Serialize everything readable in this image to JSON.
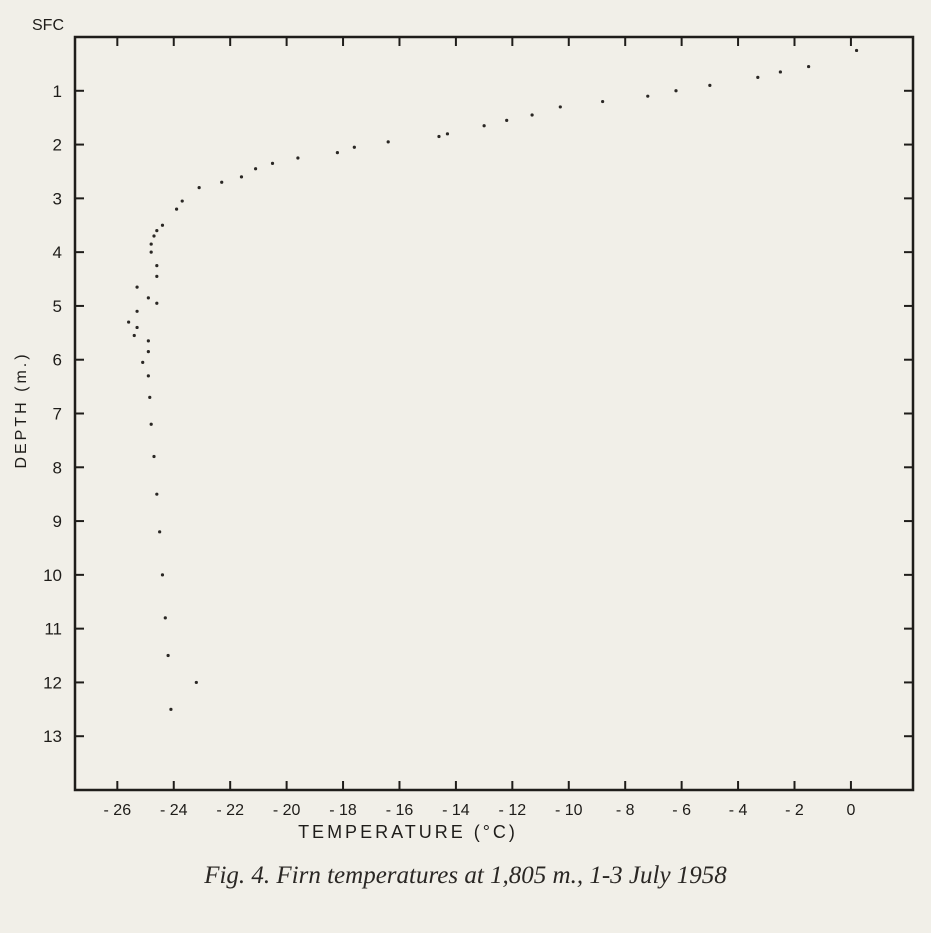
{
  "chart_data": {
    "type": "scatter",
    "title": "",
    "xlabel": "TEMPERATURE (°C)",
    "ylabel": "DEPTH (m.)",
    "x_axis": {
      "min": -27.5,
      "max": 2.2,
      "ticks": [
        -26,
        -24,
        -22,
        -20,
        -18,
        -16,
        -14,
        -12,
        -10,
        -8,
        -6,
        -4,
        -2,
        0
      ]
    },
    "y_axis": {
      "min": 0,
      "max": 14,
      "inverted": true,
      "surface_label": "SFC",
      "ticks": [
        1,
        2,
        3,
        4,
        5,
        6,
        7,
        8,
        9,
        10,
        11,
        12,
        13
      ]
    },
    "grid": false,
    "series": [
      {
        "points": [
          [
            0.2,
            0.25
          ],
          [
            -1.5,
            0.55
          ],
          [
            -2.5,
            0.65
          ],
          [
            -3.3,
            0.75
          ],
          [
            -5.0,
            0.9
          ],
          [
            -6.2,
            1.0
          ],
          [
            -7.2,
            1.1
          ],
          [
            -8.8,
            1.2
          ],
          [
            -10.3,
            1.3
          ],
          [
            -11.3,
            1.45
          ],
          [
            -12.2,
            1.55
          ],
          [
            -13.0,
            1.65
          ],
          [
            -14.3,
            1.8
          ],
          [
            -14.6,
            1.85
          ],
          [
            -16.4,
            1.95
          ],
          [
            -17.6,
            2.05
          ],
          [
            -18.2,
            2.15
          ],
          [
            -19.6,
            2.25
          ],
          [
            -20.5,
            2.35
          ],
          [
            -21.1,
            2.45
          ],
          [
            -21.6,
            2.6
          ],
          [
            -22.3,
            2.7
          ],
          [
            -23.1,
            2.8
          ],
          [
            -23.7,
            3.05
          ],
          [
            -23.9,
            3.2
          ],
          [
            -24.4,
            3.5
          ],
          [
            -24.6,
            3.6
          ],
          [
            -24.7,
            3.7
          ],
          [
            -24.8,
            3.85
          ],
          [
            -24.8,
            4.0
          ],
          [
            -24.6,
            4.25
          ],
          [
            -24.6,
            4.45
          ],
          [
            -25.3,
            4.65
          ],
          [
            -24.9,
            4.85
          ],
          [
            -24.6,
            4.95
          ],
          [
            -25.3,
            5.1
          ],
          [
            -25.6,
            5.3
          ],
          [
            -25.3,
            5.4
          ],
          [
            -25.4,
            5.55
          ],
          [
            -24.9,
            5.65
          ],
          [
            -24.9,
            5.85
          ],
          [
            -25.1,
            6.05
          ],
          [
            -24.9,
            6.3
          ],
          [
            -24.85,
            6.7
          ],
          [
            -24.8,
            7.2
          ],
          [
            -24.7,
            7.8
          ],
          [
            -24.6,
            8.5
          ],
          [
            -24.5,
            9.2
          ],
          [
            -24.4,
            10.0
          ],
          [
            -24.3,
            10.8
          ],
          [
            -24.2,
            11.5
          ],
          [
            -23.2,
            12.0
          ],
          [
            -24.1,
            12.5
          ]
        ]
      }
    ],
    "caption": "Fig. 4. Firn temperatures at 1,805 m., 1-3 July 1958"
  }
}
